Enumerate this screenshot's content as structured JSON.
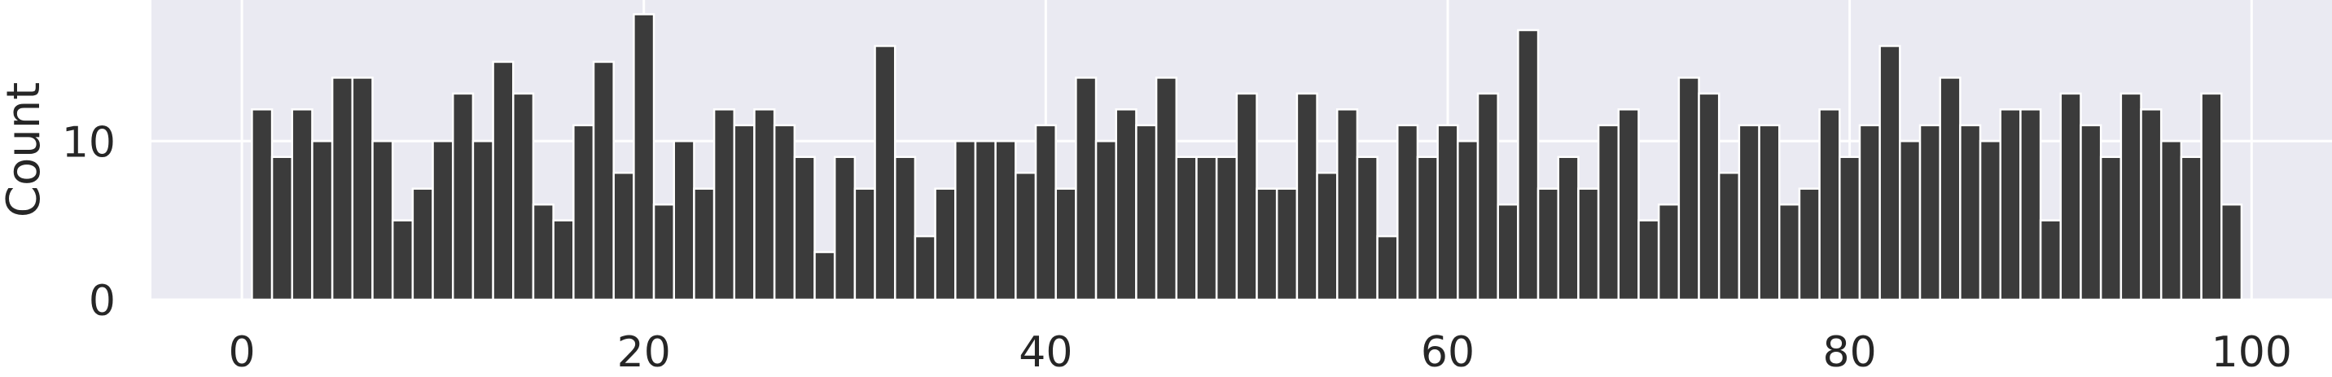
{
  "chart_data": {
    "type": "bar",
    "title": "",
    "xlabel": "",
    "ylabel": "Count",
    "x": [
      1,
      2,
      3,
      4,
      5,
      6,
      7,
      8,
      9,
      10,
      11,
      12,
      13,
      14,
      15,
      16,
      17,
      18,
      19,
      20,
      21,
      22,
      23,
      24,
      25,
      26,
      27,
      28,
      29,
      30,
      31,
      32,
      33,
      34,
      35,
      36,
      37,
      38,
      39,
      40,
      41,
      42,
      43,
      44,
      45,
      46,
      47,
      48,
      49,
      50,
      51,
      52,
      53,
      54,
      55,
      56,
      57,
      58,
      59,
      60,
      61,
      62,
      63,
      64,
      65,
      66,
      67,
      68,
      69,
      70,
      71,
      72,
      73,
      74,
      75,
      76,
      77,
      78,
      79,
      80,
      81,
      82,
      83,
      84,
      85,
      86,
      87,
      88,
      89,
      90,
      91,
      92,
      93,
      94,
      95,
      96,
      97,
      98,
      99
    ],
    "values": [
      12,
      9,
      12,
      10,
      14,
      14,
      10,
      5,
      7,
      10,
      13,
      10,
      15,
      13,
      6,
      5,
      11,
      15,
      8,
      18,
      6,
      10,
      7,
      12,
      11,
      12,
      11,
      9,
      3,
      9,
      7,
      16,
      9,
      4,
      7,
      10,
      10,
      10,
      8,
      11,
      7,
      14,
      10,
      12,
      11,
      14,
      9,
      9,
      9,
      13,
      7,
      7,
      13,
      8,
      12,
      9,
      4,
      11,
      9,
      11,
      10,
      13,
      6,
      17,
      7,
      9,
      7,
      11,
      12,
      5,
      6,
      14,
      13,
      8,
      11,
      11,
      6,
      7,
      12,
      9,
      11,
      16,
      10,
      11,
      14,
      11,
      10,
      12,
      12,
      5,
      13,
      11,
      9,
      13,
      12,
      10,
      9,
      13,
      6
    ],
    "xlim": [
      -4.5,
      104
    ],
    "ylim": [
      0,
      18.9
    ],
    "xticks": [
      "0",
      "20",
      "40",
      "60",
      "80",
      "100"
    ],
    "yticks": [
      "0",
      "10"
    ],
    "grid": true,
    "colors": {
      "background": "#eaeaf2",
      "bar": "#3b3b3b",
      "grid": "#ffffff",
      "text": "#262626"
    }
  }
}
